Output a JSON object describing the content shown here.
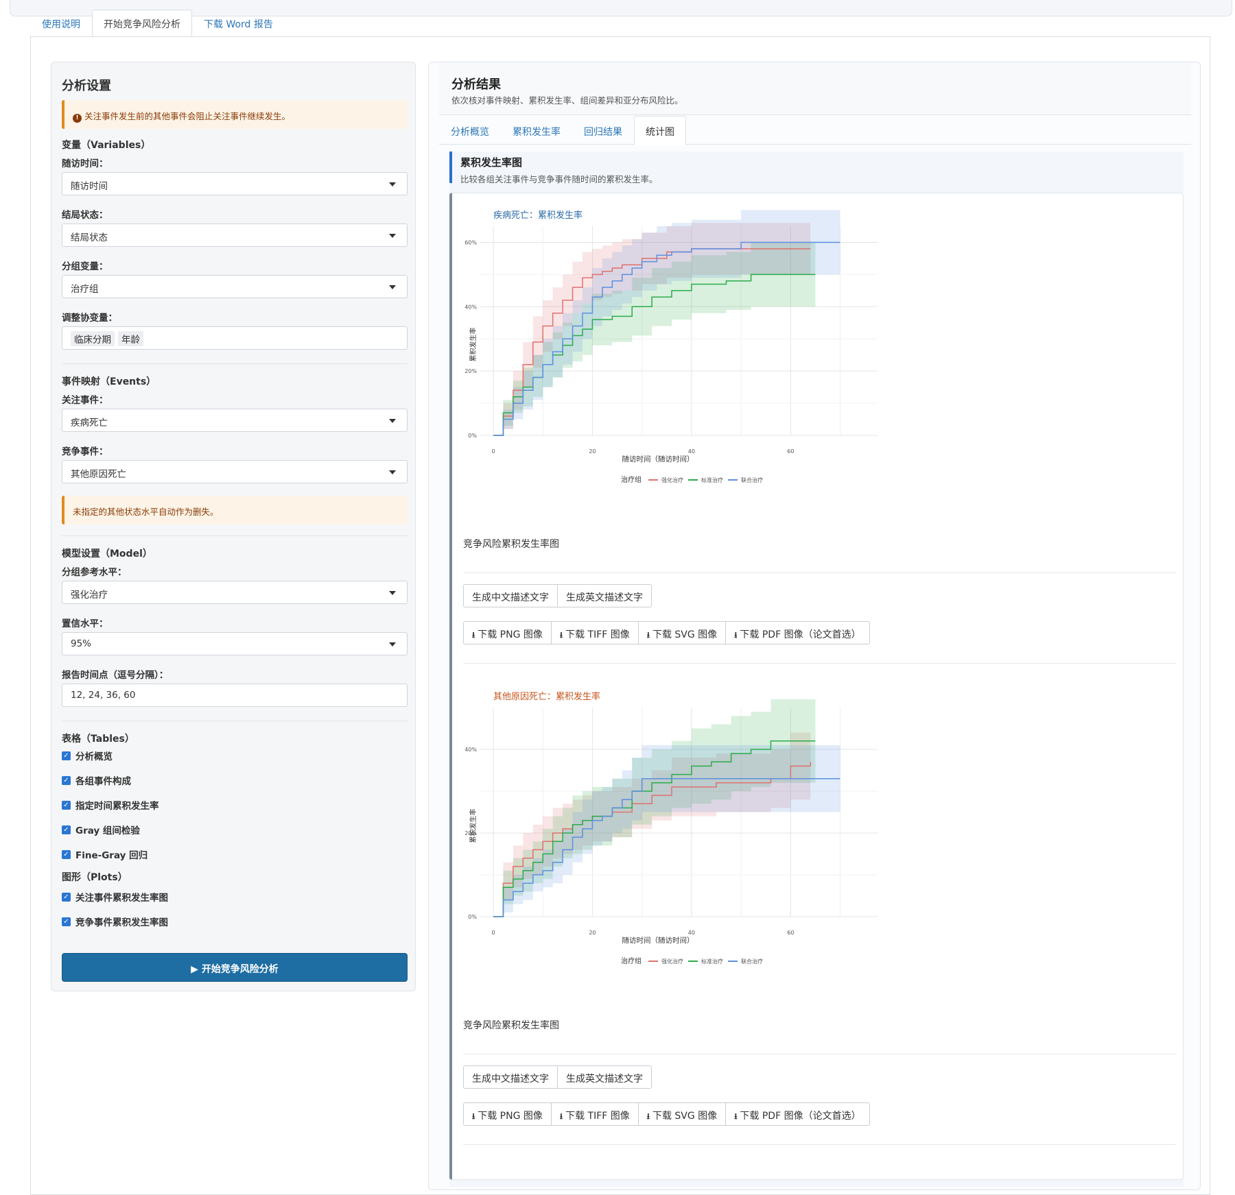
{
  "nav": {
    "tabs": [
      {
        "label": "使用说明"
      },
      {
        "label": "开始竞争风险分析"
      },
      {
        "label": "下载 Word 报告"
      }
    ]
  },
  "sidebar": {
    "title": "分析设置",
    "alert_top": "关注事件发生前的其他事件会阻止关注事件继续发生。",
    "variables_head": "变量（Variables）",
    "time_label": "随访时间：",
    "time_value": "随访时间",
    "status_label": "结局状态：",
    "status_value": "结局状态",
    "group_label": "分组变量：",
    "group_value": "治疗组",
    "covar_label": "调整协变量：",
    "covar_tags": [
      "临床分期",
      "年龄"
    ],
    "events_head": "事件映射（Events）",
    "focus_label": "关注事件：",
    "focus_value": "疾病死亡",
    "compete_label": "竞争事件：",
    "compete_value": "其他原因死亡",
    "alert_mid": "未指定的其他状态水平自动作为删失。",
    "model_head": "模型设置（Model）",
    "ref_label": "分组参考水平：",
    "ref_value": "强化治疗",
    "conf_label": "置信水平：",
    "conf_value": "95%",
    "times_label": "报告时间点（逗号分隔）：",
    "times_value": "12, 24, 36, 60",
    "tables_head": "表格（Tables）",
    "tables": [
      "分析概览",
      "各组事件构成",
      "指定时间累积发生率",
      "Gray 组间检验",
      "Fine-Gray 回归"
    ],
    "plots_head": "图形（Plots）",
    "plots": [
      "关注事件累积发生率图",
      "竞争事件累积发生率图"
    ],
    "run_label": "开始竞争风险分析"
  },
  "results": {
    "title": "分析结果",
    "subtitle": "依次核对事件映射、累积发生率、组间差异和亚分布风险比。",
    "tabs": [
      {
        "label": "分析概览"
      },
      {
        "label": "累积发生率"
      },
      {
        "label": "回归结果"
      },
      {
        "label": "统计图"
      }
    ],
    "section_title": "累积发生率图",
    "section_sub": "比较各组关注事件与竞争事件随时间的累积发生率。",
    "caption": "竞争风险累积发生率图",
    "btn_cn": "生成中文描述文字",
    "btn_en": "生成英文描述文字",
    "dl_png": "下载 PNG 图像",
    "dl_tiff": "下载 TIFF 图像",
    "dl_svg": "下载 SVG 图像",
    "dl_pdf": "下载 PDF 图像（论文首选）"
  },
  "colors": {
    "intensive": "#e07070",
    "standard": "#2aab4a",
    "combined": "#5b8fe0",
    "title1": "#2a6aa8",
    "title2": "#c8541a"
  },
  "chart_data": [
    {
      "type": "line",
      "title": "疾病死亡：累积发生率",
      "xlabel": "随访时间（随访时间）",
      "ylabel": "累积发生率",
      "xlim": [
        0,
        72
      ],
      "ylim": [
        0,
        0.65
      ],
      "xticks": [
        "0",
        "20",
        "40",
        "60"
      ],
      "yticks": [
        "0%",
        "20%",
        "40%",
        "60%"
      ],
      "legend_title": "治疗组",
      "legend_position": "bottom",
      "series": [
        {
          "name": "强化治疗",
          "color": "#e07070",
          "x": [
            0,
            2,
            4,
            6,
            8,
            10,
            12,
            14,
            16,
            18,
            20,
            22,
            24,
            26,
            30,
            35,
            40,
            47,
            55,
            63,
            64
          ],
          "y": [
            0,
            0.06,
            0.14,
            0.22,
            0.29,
            0.34,
            0.38,
            0.42,
            0.46,
            0.49,
            0.5,
            0.51,
            0.52,
            0.53,
            0.55,
            0.57,
            0.58,
            0.58,
            0.58,
            0.58,
            0.58
          ],
          "lo": [
            0,
            0.02,
            0.08,
            0.15,
            0.21,
            0.26,
            0.3,
            0.34,
            0.38,
            0.41,
            0.42,
            0.43,
            0.44,
            0.45,
            0.47,
            0.49,
            0.5,
            0.5,
            0.5,
            0.5,
            0.5
          ],
          "hi": [
            0,
            0.1,
            0.2,
            0.29,
            0.37,
            0.42,
            0.46,
            0.5,
            0.54,
            0.57,
            0.58,
            0.59,
            0.6,
            0.61,
            0.63,
            0.65,
            0.66,
            0.66,
            0.66,
            0.66,
            0.66
          ]
        },
        {
          "name": "标准治疗",
          "color": "#2aab4a",
          "x": [
            0,
            2,
            4,
            6,
            8,
            10,
            12,
            14,
            16,
            18,
            20,
            24,
            28,
            32,
            36,
            40,
            47,
            52,
            58,
            65
          ],
          "y": [
            0,
            0.07,
            0.12,
            0.15,
            0.18,
            0.22,
            0.25,
            0.28,
            0.31,
            0.33,
            0.36,
            0.37,
            0.4,
            0.43,
            0.45,
            0.47,
            0.48,
            0.5,
            0.5,
            0.5
          ],
          "lo": [
            0,
            0.03,
            0.07,
            0.09,
            0.12,
            0.15,
            0.18,
            0.21,
            0.23,
            0.25,
            0.28,
            0.29,
            0.31,
            0.34,
            0.36,
            0.38,
            0.39,
            0.4,
            0.4,
            0.4
          ],
          "hi": [
            0,
            0.11,
            0.17,
            0.21,
            0.25,
            0.29,
            0.32,
            0.35,
            0.38,
            0.41,
            0.44,
            0.45,
            0.49,
            0.52,
            0.54,
            0.56,
            0.57,
            0.6,
            0.6,
            0.6
          ]
        },
        {
          "name": "联合治疗",
          "color": "#5b8fe0",
          "x": [
            0,
            2,
            4,
            6,
            8,
            10,
            12,
            14,
            16,
            18,
            20,
            22,
            24,
            26,
            28,
            30,
            33,
            36,
            40,
            44,
            50,
            56,
            65,
            70
          ],
          "y": [
            0,
            0.05,
            0.1,
            0.14,
            0.18,
            0.22,
            0.26,
            0.3,
            0.34,
            0.38,
            0.43,
            0.46,
            0.48,
            0.5,
            0.52,
            0.54,
            0.56,
            0.57,
            0.58,
            0.58,
            0.6,
            0.6,
            0.6,
            0.6
          ],
          "lo": [
            0,
            0.02,
            0.05,
            0.08,
            0.11,
            0.15,
            0.18,
            0.22,
            0.26,
            0.3,
            0.34,
            0.37,
            0.39,
            0.41,
            0.43,
            0.45,
            0.47,
            0.48,
            0.49,
            0.49,
            0.5,
            0.5,
            0.5,
            0.5
          ],
          "hi": [
            0,
            0.08,
            0.15,
            0.2,
            0.25,
            0.3,
            0.34,
            0.38,
            0.42,
            0.46,
            0.52,
            0.55,
            0.57,
            0.59,
            0.61,
            0.63,
            0.65,
            0.66,
            0.67,
            0.67,
            0.7,
            0.7,
            0.7,
            0.7
          ]
        }
      ]
    },
    {
      "type": "line",
      "title": "其他原因死亡：累积发生率",
      "xlabel": "随访时间（随访时间）",
      "ylabel": "累积发生率",
      "xlim": [
        0,
        72
      ],
      "ylim": [
        0,
        0.5
      ],
      "xticks": [
        "0",
        "20",
        "40",
        "60"
      ],
      "yticks": [
        "0%",
        "20%",
        "40%"
      ],
      "legend_title": "治疗组",
      "legend_position": "bottom",
      "series": [
        {
          "name": "强化治疗",
          "color": "#e07070",
          "x": [
            0,
            2,
            4,
            6,
            8,
            10,
            12,
            14,
            16,
            18,
            20,
            24,
            28,
            32,
            36,
            40,
            45,
            52,
            56,
            60,
            64
          ],
          "y": [
            0,
            0.08,
            0.12,
            0.14,
            0.16,
            0.18,
            0.2,
            0.21,
            0.22,
            0.23,
            0.24,
            0.25,
            0.27,
            0.29,
            0.31,
            0.31,
            0.32,
            0.32,
            0.33,
            0.36,
            0.37
          ],
          "lo": [
            0,
            0.04,
            0.07,
            0.09,
            0.1,
            0.12,
            0.14,
            0.15,
            0.16,
            0.17,
            0.18,
            0.19,
            0.21,
            0.23,
            0.24,
            0.24,
            0.25,
            0.25,
            0.26,
            0.28,
            0.28
          ],
          "hi": [
            0,
            0.13,
            0.17,
            0.2,
            0.22,
            0.24,
            0.26,
            0.27,
            0.28,
            0.29,
            0.3,
            0.31,
            0.33,
            0.35,
            0.38,
            0.38,
            0.39,
            0.39,
            0.4,
            0.44,
            0.46
          ]
        },
        {
          "name": "标准治疗",
          "color": "#2aab4a",
          "x": [
            0,
            2,
            4,
            6,
            8,
            10,
            12,
            14,
            16,
            18,
            20,
            24,
            28,
            32,
            36,
            40,
            44,
            48,
            52,
            56,
            60,
            65
          ],
          "y": [
            0,
            0.07,
            0.09,
            0.11,
            0.13,
            0.15,
            0.18,
            0.2,
            0.22,
            0.23,
            0.24,
            0.26,
            0.3,
            0.32,
            0.34,
            0.36,
            0.37,
            0.39,
            0.4,
            0.42,
            0.42,
            0.42
          ],
          "lo": [
            0,
            0.03,
            0.05,
            0.06,
            0.08,
            0.09,
            0.12,
            0.14,
            0.15,
            0.16,
            0.17,
            0.19,
            0.22,
            0.24,
            0.26,
            0.27,
            0.28,
            0.3,
            0.31,
            0.32,
            0.32,
            0.32
          ],
          "hi": [
            0,
            0.11,
            0.14,
            0.16,
            0.18,
            0.21,
            0.24,
            0.26,
            0.29,
            0.3,
            0.31,
            0.33,
            0.38,
            0.4,
            0.42,
            0.45,
            0.46,
            0.48,
            0.49,
            0.52,
            0.52,
            0.52
          ]
        },
        {
          "name": "联合治疗",
          "color": "#5b8fe0",
          "x": [
            0,
            2,
            4,
            6,
            8,
            10,
            12,
            14,
            16,
            18,
            20,
            22,
            24,
            26,
            28,
            30,
            34,
            40,
            50,
            60,
            70
          ],
          "y": [
            0,
            0.04,
            0.06,
            0.08,
            0.1,
            0.11,
            0.13,
            0.16,
            0.19,
            0.21,
            0.23,
            0.24,
            0.26,
            0.28,
            0.3,
            0.33,
            0.33,
            0.33,
            0.33,
            0.33,
            0.33
          ],
          "lo": [
            0,
            0.01,
            0.03,
            0.04,
            0.06,
            0.07,
            0.08,
            0.1,
            0.13,
            0.15,
            0.17,
            0.18,
            0.2,
            0.21,
            0.23,
            0.25,
            0.25,
            0.25,
            0.25,
            0.25,
            0.25
          ],
          "hi": [
            0,
            0.07,
            0.1,
            0.12,
            0.14,
            0.16,
            0.18,
            0.21,
            0.25,
            0.28,
            0.3,
            0.31,
            0.33,
            0.35,
            0.38,
            0.41,
            0.41,
            0.41,
            0.41,
            0.41,
            0.41
          ]
        }
      ]
    }
  ]
}
